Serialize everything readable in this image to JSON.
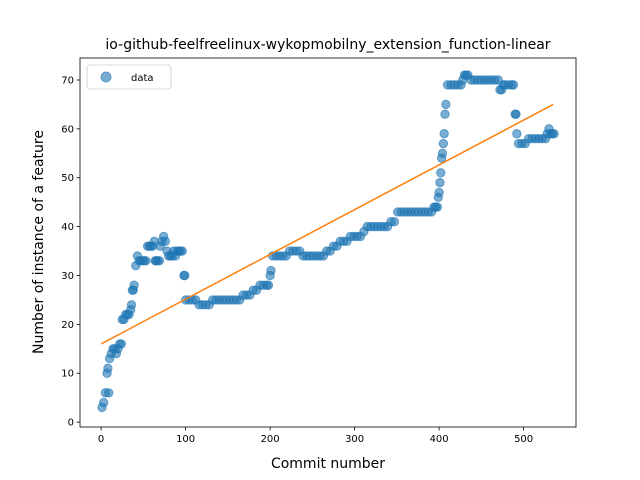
{
  "chart_data": {
    "type": "scatter",
    "title": "io-github-feelfreelinux-wykopmobilny_extension_function-linear",
    "xlabel": "Commit number",
    "ylabel": "Number of instance of a feature",
    "xlim": [
      -25,
      562
    ],
    "ylim": [
      -1,
      74.5
    ],
    "xticks": [
      0,
      100,
      200,
      300,
      400,
      500
    ],
    "yticks": [
      0,
      10,
      20,
      30,
      40,
      50,
      60,
      70
    ],
    "xtick_labels": [
      "0",
      "100",
      "200",
      "300",
      "400",
      "500"
    ],
    "ytick_labels": [
      "0",
      "10",
      "20",
      "30",
      "40",
      "50",
      "60",
      "70"
    ],
    "grid": false,
    "legend": {
      "placement": "top-left",
      "entries": [
        "data"
      ]
    },
    "colors": {
      "data": "#1f77b4",
      "fit": "#ff7f0e"
    },
    "series": [
      {
        "name": "data",
        "kind": "scatter",
        "points": [
          [
            1,
            3
          ],
          [
            3,
            4
          ],
          [
            5,
            6
          ],
          [
            7,
            10
          ],
          [
            8,
            11
          ],
          [
            9,
            6
          ],
          [
            10,
            13
          ],
          [
            12,
            14
          ],
          [
            14,
            15
          ],
          [
            16,
            15
          ],
          [
            18,
            14
          ],
          [
            20,
            15
          ],
          [
            22,
            16
          ],
          [
            24,
            16
          ],
          [
            25,
            21
          ],
          [
            27,
            21
          ],
          [
            29,
            22
          ],
          [
            31,
            22
          ],
          [
            33,
            22
          ],
          [
            35,
            23
          ],
          [
            36,
            24
          ],
          [
            37,
            27
          ],
          [
            38,
            27
          ],
          [
            39,
            28
          ],
          [
            41,
            32
          ],
          [
            43,
            34
          ],
          [
            45,
            33
          ],
          [
            47,
            33
          ],
          [
            49,
            33
          ],
          [
            51,
            33
          ],
          [
            53,
            33
          ],
          [
            55,
            36
          ],
          [
            57,
            36
          ],
          [
            59,
            36
          ],
          [
            61,
            36
          ],
          [
            63,
            37
          ],
          [
            64,
            33
          ],
          [
            65,
            33
          ],
          [
            67,
            33
          ],
          [
            69,
            33
          ],
          [
            70,
            36
          ],
          [
            72,
            37
          ],
          [
            74,
            38
          ],
          [
            76,
            37
          ],
          [
            78,
            35
          ],
          [
            80,
            34
          ],
          [
            82,
            34
          ],
          [
            84,
            34
          ],
          [
            86,
            35
          ],
          [
            88,
            34
          ],
          [
            90,
            35
          ],
          [
            92,
            35
          ],
          [
            94,
            35
          ],
          [
            96,
            35
          ],
          [
            98,
            30
          ],
          [
            99,
            30
          ],
          [
            100,
            25
          ],
          [
            104,
            25
          ],
          [
            108,
            25
          ],
          [
            112,
            25
          ],
          [
            116,
            24
          ],
          [
            120,
            24
          ],
          [
            124,
            24
          ],
          [
            128,
            24
          ],
          [
            132,
            25
          ],
          [
            136,
            25
          ],
          [
            140,
            25
          ],
          [
            144,
            25
          ],
          [
            148,
            25
          ],
          [
            152,
            25
          ],
          [
            156,
            25
          ],
          [
            160,
            25
          ],
          [
            164,
            25
          ],
          [
            168,
            26
          ],
          [
            172,
            26
          ],
          [
            176,
            26
          ],
          [
            180,
            27
          ],
          [
            184,
            27
          ],
          [
            188,
            28
          ],
          [
            192,
            28
          ],
          [
            196,
            28
          ],
          [
            198,
            28
          ],
          [
            200,
            30
          ],
          [
            201,
            31
          ],
          [
            203,
            34
          ],
          [
            207,
            34
          ],
          [
            211,
            34
          ],
          [
            215,
            34
          ],
          [
            219,
            34
          ],
          [
            223,
            35
          ],
          [
            227,
            35
          ],
          [
            231,
            35
          ],
          [
            235,
            35
          ],
          [
            239,
            34
          ],
          [
            243,
            34
          ],
          [
            247,
            34
          ],
          [
            251,
            34
          ],
          [
            255,
            34
          ],
          [
            259,
            34
          ],
          [
            263,
            34
          ],
          [
            267,
            35
          ],
          [
            271,
            35
          ],
          [
            275,
            36
          ],
          [
            279,
            36
          ],
          [
            283,
            37
          ],
          [
            287,
            37
          ],
          [
            291,
            37
          ],
          [
            295,
            38
          ],
          [
            299,
            38
          ],
          [
            303,
            38
          ],
          [
            307,
            38
          ],
          [
            311,
            39
          ],
          [
            315,
            40
          ],
          [
            319,
            40
          ],
          [
            323,
            40
          ],
          [
            327,
            40
          ],
          [
            331,
            40
          ],
          [
            335,
            40
          ],
          [
            339,
            40
          ],
          [
            343,
            41
          ],
          [
            347,
            41
          ],
          [
            351,
            43
          ],
          [
            355,
            43
          ],
          [
            359,
            43
          ],
          [
            363,
            43
          ],
          [
            367,
            43
          ],
          [
            371,
            43
          ],
          [
            375,
            43
          ],
          [
            379,
            43
          ],
          [
            383,
            43
          ],
          [
            387,
            43
          ],
          [
            391,
            43
          ],
          [
            394,
            44
          ],
          [
            396,
            44
          ],
          [
            398,
            44
          ],
          [
            399,
            46
          ],
          [
            400,
            47
          ],
          [
            401,
            49
          ],
          [
            402,
            51
          ],
          [
            403,
            54
          ],
          [
            404,
            55
          ],
          [
            405,
            57
          ],
          [
            406,
            59
          ],
          [
            407,
            63
          ],
          [
            408,
            65
          ],
          [
            410,
            69
          ],
          [
            414,
            69
          ],
          [
            418,
            69
          ],
          [
            422,
            69
          ],
          [
            426,
            69
          ],
          [
            428,
            70
          ],
          [
            430,
            71
          ],
          [
            432,
            71
          ],
          [
            434,
            71
          ],
          [
            438,
            70
          ],
          [
            442,
            70
          ],
          [
            446,
            70
          ],
          [
            450,
            70
          ],
          [
            454,
            70
          ],
          [
            458,
            70
          ],
          [
            462,
            70
          ],
          [
            466,
            70
          ],
          [
            470,
            70
          ],
          [
            472,
            68
          ],
          [
            474,
            68
          ],
          [
            476,
            69
          ],
          [
            478,
            69
          ],
          [
            482,
            69
          ],
          [
            486,
            69
          ],
          [
            488,
            69
          ],
          [
            490,
            63
          ],
          [
            491,
            63
          ],
          [
            492,
            59
          ],
          [
            494,
            57
          ],
          [
            498,
            57
          ],
          [
            502,
            57
          ],
          [
            506,
            58
          ],
          [
            510,
            58
          ],
          [
            514,
            58
          ],
          [
            518,
            58
          ],
          [
            522,
            58
          ],
          [
            526,
            58
          ],
          [
            528,
            59
          ],
          [
            530,
            60
          ],
          [
            532,
            59
          ],
          [
            534,
            59
          ],
          [
            536,
            59
          ]
        ]
      },
      {
        "name": "",
        "kind": "line",
        "points": [
          [
            0,
            16
          ],
          [
            535,
            65
          ]
        ]
      }
    ]
  }
}
